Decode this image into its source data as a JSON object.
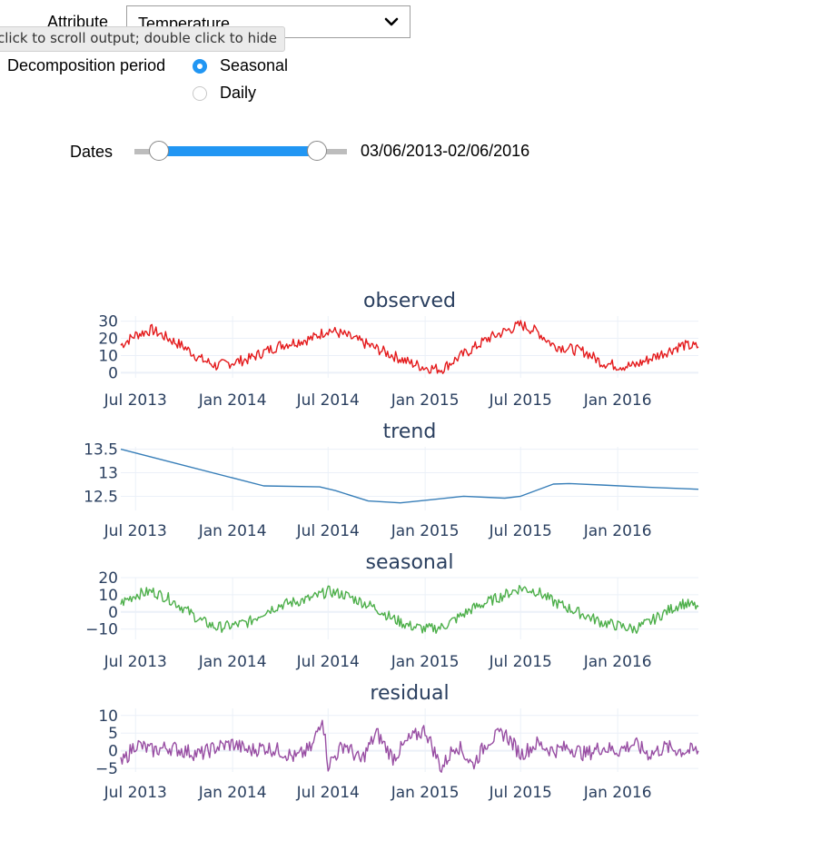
{
  "controls": {
    "attribute_label": "Attribute",
    "attribute_value": "Temperature",
    "tooltip": "click to scroll output; double click to hide",
    "period_label": "Decomposition period",
    "period_options": [
      "Seasonal",
      "Daily"
    ],
    "period_selected": "Seasonal",
    "dates_label": "Dates",
    "dates_value": "03/06/2013-02/06/2016",
    "dates_range_fraction": [
      0.11,
      0.85
    ]
  },
  "colors": {
    "observed": "#e41a1c",
    "trend": "#377eb8",
    "seasonal": "#4daf4a",
    "residual": "#984ea3",
    "accent": "#2196f3",
    "grid": "#ebf0f8",
    "text": "#2a3f5f"
  },
  "chart_data": [
    {
      "type": "line",
      "title": "observed",
      "x_range": [
        "2013-06-03",
        "2016-06-02"
      ],
      "x_ticks": [
        "Jul 2013",
        "Jan 2014",
        "Jul 2014",
        "Jan 2015",
        "Jul 2015",
        "Jan 2016"
      ],
      "x_tick_dates": [
        "2013-07-01",
        "2014-01-01",
        "2014-07-01",
        "2015-01-01",
        "2015-07-01",
        "2016-01-01"
      ],
      "y_ticks": [
        "30",
        "20",
        "10",
        "0"
      ],
      "y_tick_values": [
        30,
        20,
        10,
        0
      ],
      "ylim": [
        -3,
        33
      ],
      "series": [
        {
          "color_key": "observed",
          "x": [
            "2013-06-03",
            "2013-07-01",
            "2013-08-01",
            "2013-09-01",
            "2013-10-01",
            "2013-11-01",
            "2013-12-01",
            "2014-01-01",
            "2014-02-01",
            "2014-03-01",
            "2014-04-01",
            "2014-05-01",
            "2014-06-01",
            "2014-07-01",
            "2014-08-01",
            "2014-09-01",
            "2014-10-01",
            "2014-11-01",
            "2014-12-01",
            "2015-01-01",
            "2015-02-01",
            "2015-03-01",
            "2015-04-01",
            "2015-05-01",
            "2015-06-01",
            "2015-07-01",
            "2015-08-01",
            "2015-09-01",
            "2015-10-01",
            "2015-11-01",
            "2015-12-01",
            "2016-01-01",
            "2016-02-01",
            "2016-03-01",
            "2016-04-01",
            "2016-05-01",
            "2016-06-02"
          ],
          "y": [
            16,
            22,
            25,
            20,
            15,
            8,
            4,
            6,
            8,
            12,
            16,
            18,
            20,
            25,
            22,
            18,
            14,
            10,
            6,
            3,
            2,
            8,
            14,
            20,
            24,
            28,
            24,
            16,
            14,
            12,
            6,
            4,
            4,
            8,
            12,
            16,
            15
          ]
        }
      ]
    },
    {
      "type": "line",
      "title": "trend",
      "x_range": [
        "2013-06-03",
        "2016-06-02"
      ],
      "x_ticks": [
        "Jul 2013",
        "Jan 2014",
        "Jul 2014",
        "Jan 2015",
        "Jul 2015",
        "Jan 2016"
      ],
      "x_tick_dates": [
        "2013-07-01",
        "2014-01-01",
        "2014-07-01",
        "2015-01-01",
        "2015-07-01",
        "2016-01-01"
      ],
      "y_ticks": [
        "13.5",
        "13",
        "12.5"
      ],
      "y_tick_values": [
        13.5,
        13,
        12.5
      ],
      "ylim": [
        12.2,
        13.55
      ],
      "series": [
        {
          "color_key": "trend",
          "x": [
            "2013-06-03",
            "2014-03-01",
            "2014-06-15",
            "2014-07-15",
            "2014-09-15",
            "2014-11-15",
            "2015-01-15",
            "2015-03-15",
            "2015-06-01",
            "2015-07-01",
            "2015-09-01",
            "2015-10-01",
            "2015-12-01",
            "2016-03-01",
            "2016-06-02"
          ],
          "y": [
            13.5,
            12.72,
            12.7,
            12.62,
            12.4,
            12.36,
            12.43,
            12.5,
            12.46,
            12.5,
            12.76,
            12.77,
            12.74,
            12.69,
            12.65
          ]
        }
      ]
    },
    {
      "type": "line",
      "title": "seasonal",
      "x_range": [
        "2013-06-03",
        "2016-06-02"
      ],
      "x_ticks": [
        "Jul 2013",
        "Jan 2014",
        "Jul 2014",
        "Jan 2015",
        "Jul 2015",
        "Jan 2016"
      ],
      "x_tick_dates": [
        "2013-07-01",
        "2014-01-01",
        "2014-07-01",
        "2015-01-01",
        "2015-07-01",
        "2016-01-01"
      ],
      "y_ticks": [
        "20",
        "10",
        "0",
        "−10"
      ],
      "y_tick_values": [
        20,
        10,
        0,
        -10
      ],
      "ylim": [
        -16,
        20
      ],
      "series": [
        {
          "color_key": "seasonal",
          "x": [
            "2013-06-03",
            "2013-07-01",
            "2013-08-01",
            "2013-09-01",
            "2013-10-01",
            "2013-11-01",
            "2013-12-01",
            "2014-01-01",
            "2014-02-01",
            "2014-03-01",
            "2014-04-01",
            "2014-05-01",
            "2014-06-01",
            "2014-07-01",
            "2014-08-01",
            "2014-09-01",
            "2014-10-01",
            "2014-11-01",
            "2014-12-01",
            "2015-01-01",
            "2015-02-01",
            "2015-03-01",
            "2015-04-01",
            "2015-05-01",
            "2015-06-01",
            "2015-07-01",
            "2015-08-01",
            "2015-09-01",
            "2015-10-01",
            "2015-11-01",
            "2015-12-01",
            "2016-01-01",
            "2016-02-01",
            "2016-03-01",
            "2016-04-01",
            "2016-05-01",
            "2016-06-02"
          ],
          "y": [
            5,
            10,
            12,
            8,
            2,
            -5,
            -9,
            -8,
            -6,
            0,
            4,
            6,
            8,
            12,
            10,
            6,
            2,
            -4,
            -8,
            -10,
            -9,
            -4,
            2,
            6,
            10,
            14,
            12,
            6,
            2,
            -2,
            -6,
            -8,
            -10,
            -6,
            0,
            5,
            3
          ]
        }
      ]
    },
    {
      "type": "line",
      "title": "residual",
      "x_range": [
        "2013-06-03",
        "2016-06-02"
      ],
      "x_ticks": [
        "Jul 2013",
        "Jan 2014",
        "Jul 2014",
        "Jan 2015",
        "Jul 2015",
        "Jan 2016"
      ],
      "x_tick_dates": [
        "2013-07-01",
        "2014-01-01",
        "2014-07-01",
        "2015-01-01",
        "2015-07-01",
        "2016-01-01"
      ],
      "y_ticks": [
        "10",
        "5",
        "0",
        "−5"
      ],
      "y_tick_values": [
        10,
        5,
        0,
        -5
      ],
      "ylim": [
        -6,
        12
      ],
      "series": [
        {
          "color_key": "residual",
          "x": [
            "2013-06-03",
            "2013-07-01",
            "2013-08-01",
            "2013-09-01",
            "2013-10-01",
            "2013-11-01",
            "2013-12-01",
            "2014-01-01",
            "2014-02-01",
            "2014-03-01",
            "2014-04-01",
            "2014-05-01",
            "2014-06-01",
            "2014-06-20",
            "2014-07-01",
            "2014-08-01",
            "2014-09-01",
            "2014-10-01",
            "2014-11-01",
            "2014-12-01",
            "2015-01-01",
            "2015-02-01",
            "2015-03-01",
            "2015-04-01",
            "2015-05-01",
            "2015-06-01",
            "2015-07-01",
            "2015-08-01",
            "2015-09-01",
            "2015-10-01",
            "2015-11-01",
            "2015-12-01",
            "2016-01-01",
            "2016-02-01",
            "2016-03-01",
            "2016-04-01",
            "2016-05-01",
            "2016-06-02"
          ],
          "y": [
            -4,
            2,
            0,
            1,
            0,
            -1,
            1,
            2,
            0,
            1,
            0,
            -2,
            1,
            10,
            -4,
            2,
            -3,
            5,
            -2,
            3,
            6,
            -5,
            2,
            -4,
            3,
            5,
            -1,
            2,
            0,
            1,
            -1,
            1,
            0,
            2,
            -1,
            1,
            0,
            0
          ]
        }
      ]
    }
  ]
}
